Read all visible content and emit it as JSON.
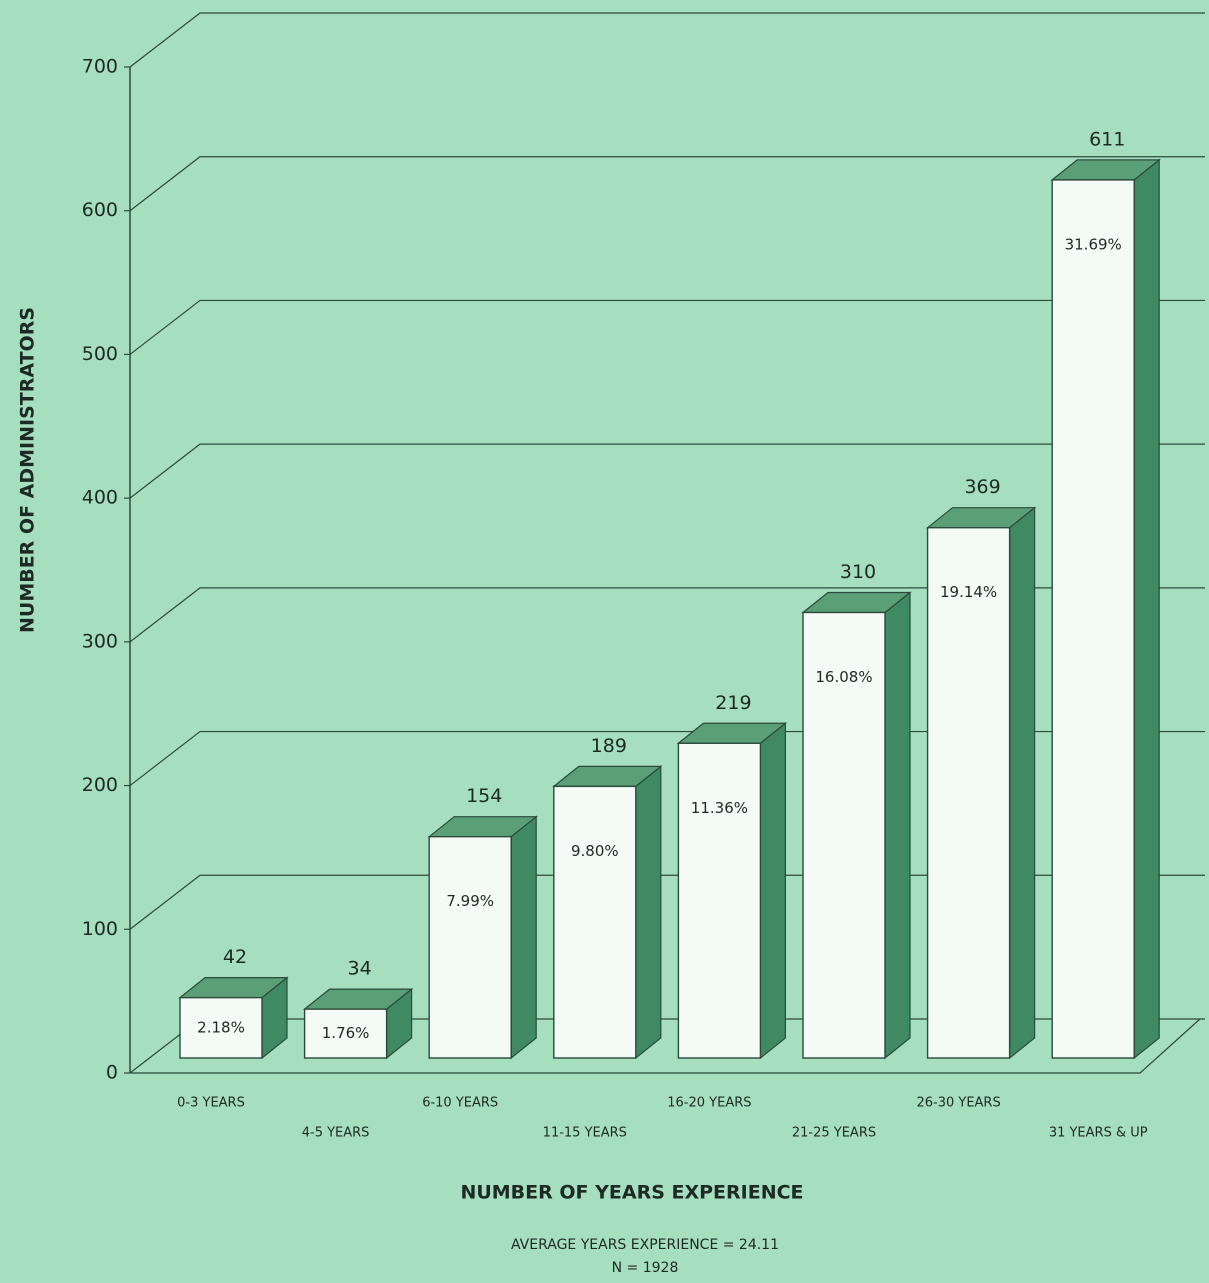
{
  "chart_data": {
    "type": "bar3d",
    "categories": [
      "0-3 YEARS",
      "4-5 YEARS",
      "6-10 YEARS",
      "11-15 YEARS",
      "16-20 YEARS",
      "21-25 YEARS",
      "26-30 YEARS",
      "31 YEARS & UP"
    ],
    "values": [
      42,
      34,
      154,
      189,
      219,
      310,
      369,
      611
    ],
    "percent_labels": [
      "2.18%",
      "1.76%",
      "7.99%",
      "9.80%",
      "11.36%",
      "16.08%",
      "19.14%",
      "31.69%"
    ],
    "ylim": [
      0,
      700
    ],
    "yticks": [
      0,
      100,
      200,
      300,
      400,
      500,
      600,
      700
    ],
    "grid": true,
    "ylabel": "NUMBER OF ADMINISTRATORS",
    "xlabel": "NUMBER OF YEARS EXPERIENCE",
    "annotations": [
      "AVERAGE YEARS EXPERIENCE = 24.11",
      "N = 1928"
    ],
    "color": "#f4fbf6",
    "side_color": "#3f8a63",
    "top_color": "#5a9f78"
  }
}
